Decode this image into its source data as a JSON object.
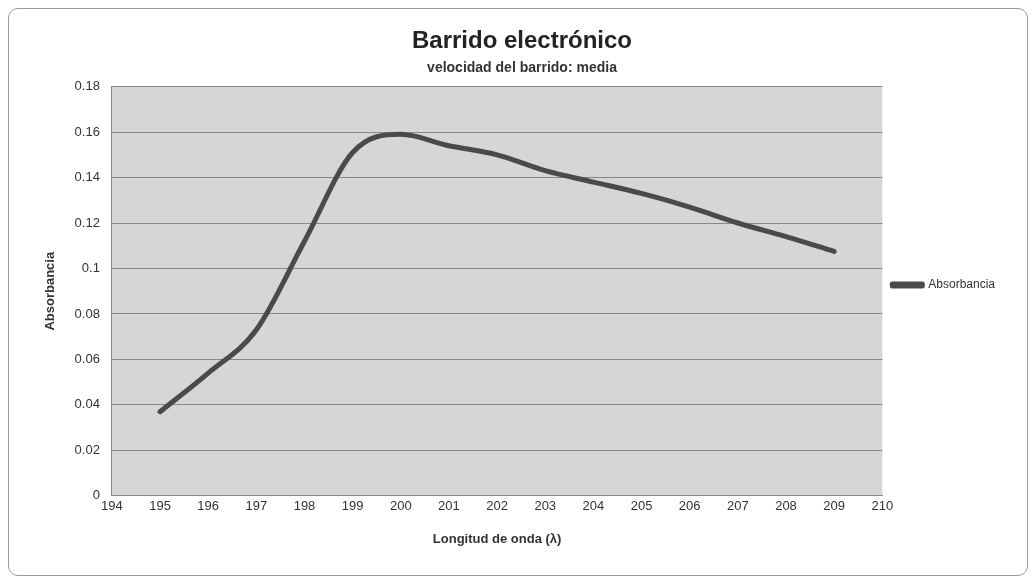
{
  "chart_data": {
    "type": "line",
    "title": "Barrido electrónico",
    "subtitle": "velocidad del barrido: media",
    "xlabel": "Longitud de onda (λ)",
    "ylabel": "Absorbancia",
    "x": [
      195,
      196,
      197,
      198,
      199,
      200,
      201,
      202,
      203,
      204,
      205,
      206,
      207,
      208,
      209
    ],
    "series": [
      {
        "name": "Absorbancia",
        "color": "#4a4a4a",
        "values": [
          0.037,
          0.054,
          0.073,
          0.112,
          0.151,
          0.159,
          0.154,
          0.15,
          0.143,
          0.138,
          0.133,
          0.127,
          0.12,
          0.114,
          0.1075
        ]
      }
    ],
    "xlim": [
      194,
      210
    ],
    "xticks": [
      194,
      195,
      196,
      197,
      198,
      199,
      200,
      201,
      202,
      203,
      204,
      205,
      206,
      207,
      208,
      209,
      210
    ],
    "ylim": [
      0,
      0.18
    ],
    "yticks": [
      0,
      0.02,
      0.04,
      0.06,
      0.08,
      0.1,
      0.12,
      0.14,
      0.16,
      0.18
    ],
    "grid": "y",
    "legend": "right",
    "marker": "none",
    "line_style": "solid"
  }
}
